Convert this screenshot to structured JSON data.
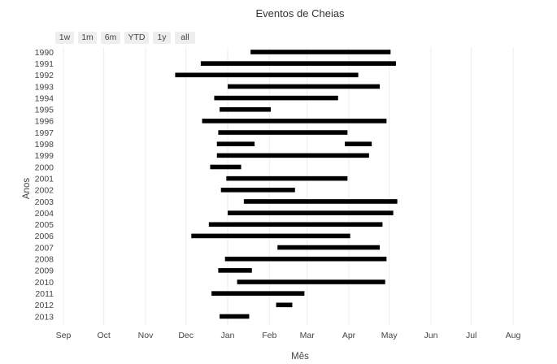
{
  "range_selector": {
    "buttons": [
      "1w",
      "1m",
      "6m",
      "YTD",
      "1y",
      "all"
    ]
  },
  "chart_data": {
    "type": "gantt",
    "title": "Eventos de Cheias",
    "xlabel": "Mês",
    "ylabel": "Anos",
    "x_ticks": [
      "Sep",
      "Oct",
      "Nov",
      "Dec",
      "Jan",
      "Feb",
      "Mar",
      "Apr",
      "May",
      "Jun",
      "Jul",
      "Aug"
    ],
    "x_range": [
      "Sep 1",
      "Aug 31"
    ],
    "grid": true,
    "bar_color": "#000000",
    "categories": [
      "1990",
      "1991",
      "1992",
      "1993",
      "1994",
      "1995",
      "1996",
      "1997",
      "1998",
      "1999",
      "2000",
      "2001",
      "2002",
      "2003",
      "2004",
      "2005",
      "2006",
      "2007",
      "2008",
      "2009",
      "2010",
      "2011",
      "2012",
      "2013"
    ],
    "events": [
      {
        "year": "1990",
        "start": "Jan 18",
        "end": "May 2"
      },
      {
        "year": "1991",
        "start": "Dec 12",
        "end": "May 6"
      },
      {
        "year": "1992",
        "start": "Nov 23",
        "end": "Apr 8"
      },
      {
        "year": "1993",
        "start": "Jan 1",
        "end": "Apr 24"
      },
      {
        "year": "1994",
        "start": "Dec 22",
        "end": "Mar 24"
      },
      {
        "year": "1995",
        "start": "Dec 26",
        "end": "Feb 2"
      },
      {
        "year": "1996",
        "start": "Dec 13",
        "end": "Apr 29"
      },
      {
        "year": "1997",
        "start": "Dec 25",
        "end": "Mar 31"
      },
      {
        "year": "1998",
        "start": "Dec 24",
        "end": "Jan 21"
      },
      {
        "year": "1998",
        "start": "Mar 29",
        "end": "Apr 18"
      },
      {
        "year": "1999",
        "start": "Dec 24",
        "end": "Apr 16"
      },
      {
        "year": "2000",
        "start": "Dec 19",
        "end": "Jan 11"
      },
      {
        "year": "2001",
        "start": "Dec 31",
        "end": "Mar 31"
      },
      {
        "year": "2002",
        "start": "Dec 27",
        "end": "Feb 20"
      },
      {
        "year": "2003",
        "start": "Jan 13",
        "end": "May 7"
      },
      {
        "year": "2004",
        "start": "Jan 1",
        "end": "May 4"
      },
      {
        "year": "2005",
        "start": "Dec 18",
        "end": "Apr 26"
      },
      {
        "year": "2006",
        "start": "Dec 5",
        "end": "Apr 2"
      },
      {
        "year": "2007",
        "start": "Feb 7",
        "end": "Apr 24"
      },
      {
        "year": "2008",
        "start": "Dec 30",
        "end": "Apr 29"
      },
      {
        "year": "2009",
        "start": "Dec 25",
        "end": "Jan 19"
      },
      {
        "year": "2010",
        "start": "Jan 8",
        "end": "Apr 28"
      },
      {
        "year": "2011",
        "start": "Dec 20",
        "end": "Feb 27"
      },
      {
        "year": "2012",
        "start": "Feb 6",
        "end": "Feb 18"
      },
      {
        "year": "2013",
        "start": "Dec 26",
        "end": "Jan 17"
      }
    ]
  }
}
